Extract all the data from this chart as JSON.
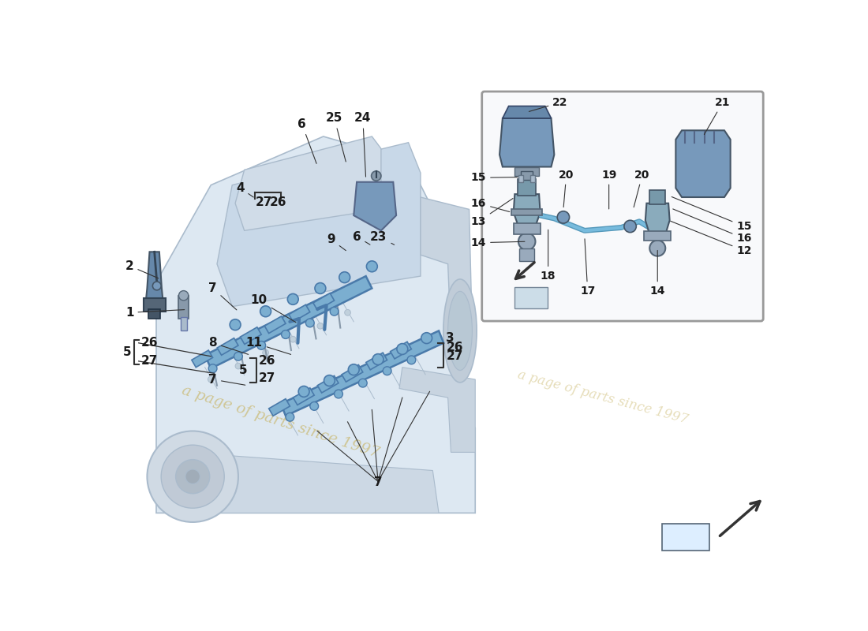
{
  "bg": "#ffffff",
  "engine_line": "#aabbcc",
  "engine_fill": "#dde8f2",
  "engine_fill2": "#c8d8e8",
  "blue_part": "#7baed0",
  "blue_part_edge": "#4a7aaa",
  "dark_part": "#6688aa",
  "dark_part_edge": "#334466",
  "gray_part": "#99aabb",
  "gray_edge": "#556677",
  "label_color": "#1a1a1a",
  "line_color": "#333333",
  "watermark": "#c8b464",
  "inset_bg": "#f8f9fb",
  "inset_border": "#999999",
  "nav_arrow_color": "#333333"
}
